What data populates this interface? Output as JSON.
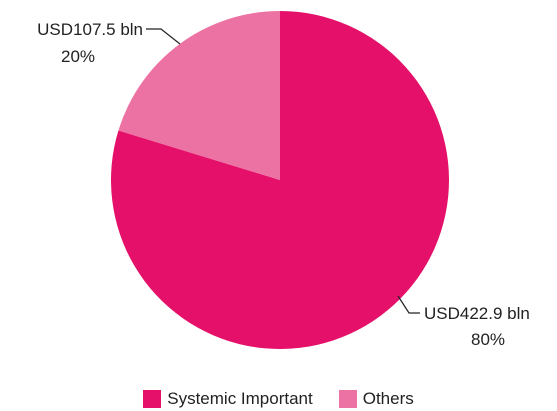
{
  "chart_data": {
    "type": "pie",
    "title": "",
    "series": [
      {
        "name": "Systemic Important",
        "value": 422.9,
        "percent": 80,
        "value_label": "USD422.9 bln",
        "percent_label": "80%",
        "color": "#e5106a"
      },
      {
        "name": "Others",
        "value": 107.5,
        "percent": 20,
        "value_label": "USD107.5 bln",
        "percent_label": "20%",
        "color": "#ec72a3"
      }
    ],
    "legend_position": "bottom"
  }
}
